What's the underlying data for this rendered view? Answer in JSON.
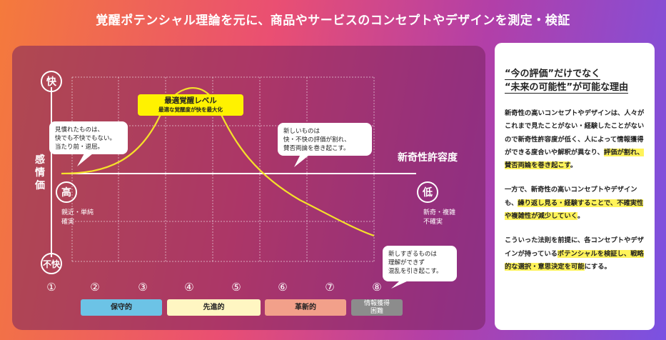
{
  "title": "覚醒ポテンシャル理論を元に、商品やサービスのコンセプトやデザインを測定・検証",
  "chart": {
    "y_axis_title": "感情価",
    "y_top": "快",
    "y_bottom": "不快",
    "x_axis_title": "新奇性許容度",
    "x_left": "高",
    "x_right": "低",
    "left_desc": "親近・単純\n確実",
    "right_desc": "新奇・複雑\n不確実",
    "optimal_title": "最適覚醒レベル",
    "optimal_sub": "最適な覚醒度が快を最大化",
    "bubble_familiar": "見慣れたものは、\n快でも不快でもない。\n当たり前・退屈。",
    "bubble_new": "新しいものは\n快・不快の評価が割れ、\n賛否両論を巻き起こす。",
    "bubble_too_new": "新しすぎるものは\n理解ができず\n混乱を引き起こす。",
    "numbers": [
      "①",
      "②",
      "③",
      "④",
      "⑤",
      "⑥",
      "⑦",
      "⑧"
    ],
    "categories": [
      {
        "label": "保守的",
        "color": "#6cc3e6"
      },
      {
        "label": "先進的",
        "color": "#fff6c2"
      },
      {
        "label": "革新的",
        "color": "#f2a08a"
      },
      {
        "label": "情報獲得\n困難",
        "color": "#8c8c8c"
      }
    ],
    "colors": {
      "curve": "#f5e12a",
      "axis": "#ffffff"
    }
  },
  "card": {
    "heading_line1": "“今の評価”だけでなく",
    "heading_line2": "“未来の可能性”が可能な理由",
    "p1_a": "新奇性の高いコンセプトやデザインは、人々がこれまで見たことがない・経験したことがないので新奇性許容度が低く、人によって情報獲得ができる度合いや解釈が異なり、",
    "p1_hl": "評価が割れ、賛否両論を巻き起こす",
    "p1_b": "。",
    "p2_a": "一方で、新奇性の高いコンセプトやデザインも、",
    "p2_hl": "繰り返し見る・経験することで、不確実性や複雑性が減少していく",
    "p2_b": "。",
    "p3_a": "こういった法則を前提に、各コンセプトやデザインが持っている",
    "p3_hl": "ポテンシャルを検証し、戦略的な選択・意思決定を可能",
    "p3_b": "にする。"
  }
}
